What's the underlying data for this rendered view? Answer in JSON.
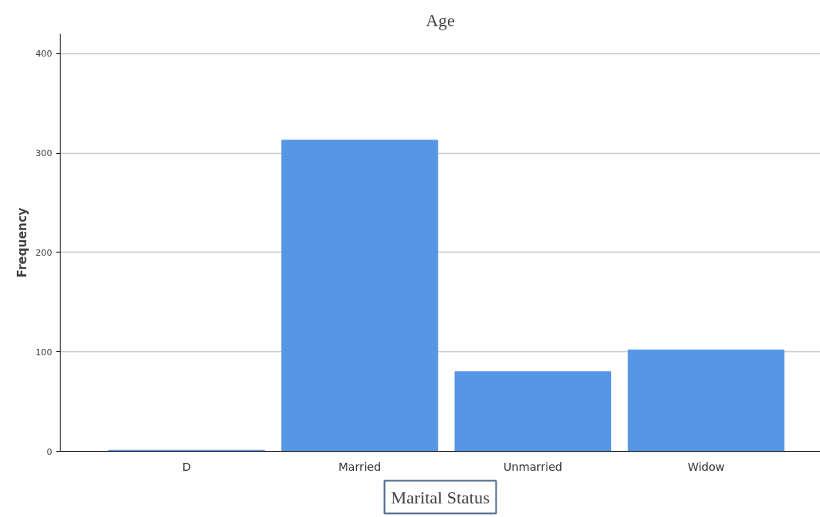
{
  "chart_data": {
    "type": "bar",
    "title": "Age",
    "xlabel": "Marital Status",
    "ylabel": "Frequency",
    "categories": [
      "D",
      "Married",
      "Unmarried",
      "Widow"
    ],
    "values": [
      1,
      313,
      80,
      102
    ],
    "color": "#5596e6",
    "ylim": [
      0,
      420
    ],
    "yticks": [
      0,
      100,
      200,
      300,
      400
    ],
    "grid": "y"
  }
}
